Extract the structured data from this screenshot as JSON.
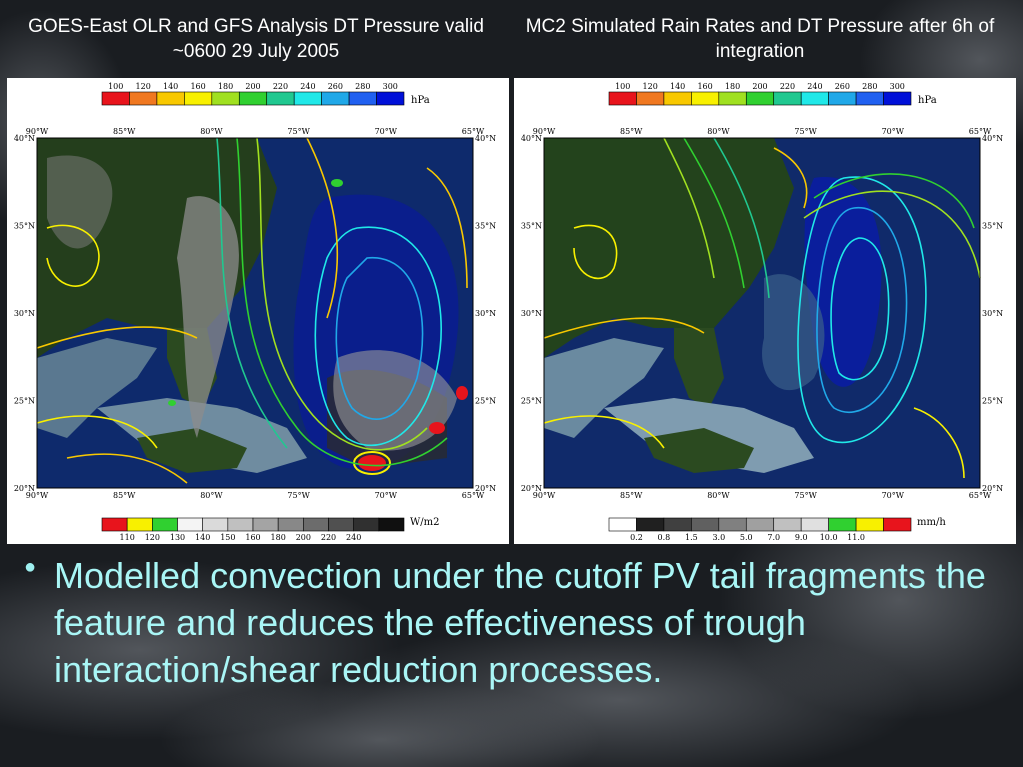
{
  "slide": {
    "bullet_symbol": "●",
    "bullet_text": "Modelled convection under the cutoff PV tail fragments the feature and reduces the effectiveness of trough interaction/shear reduction processes."
  },
  "panels": [
    {
      "title": "GOES-East OLR and GFS Analysis DT Pressure valid ~0600 29 July 2005",
      "top_scale": {
        "unit": "hPa",
        "labels": [
          "100",
          "120",
          "140",
          "160",
          "180",
          "200",
          "220",
          "240",
          "260",
          "280",
          "300"
        ],
        "colors": [
          "#e8141c",
          "#f07820",
          "#f8c800",
          "#f8f000",
          "#a0e020",
          "#30d030",
          "#20c890",
          "#20e8e8",
          "#20a8e8",
          "#2060f0",
          "#0010d8"
        ]
      },
      "bottom_scale": {
        "unit": "W/m2",
        "labels": [
          "110",
          "120",
          "130",
          "140",
          "150",
          "160",
          "180",
          "200",
          "220",
          "240"
        ],
        "colors": [
          "#e8141c",
          "#f8f000",
          "#30d030",
          "#f4f4f4",
          "#dadada",
          "#c0c0c0",
          "#a4a4a4",
          "#888888",
          "#6c6c6c",
          "#505050",
          "#303030",
          "#101010"
        ]
      },
      "lon_labels": [
        "90°W",
        "85°W",
        "80°W",
        "75°W",
        "70°W",
        "65°W"
      ],
      "lat_labels": [
        "40°N",
        "35°N",
        "30°N",
        "25°N",
        "20°N"
      ]
    },
    {
      "title": "MC2 Simulated Rain Rates and DT Pressure after 6h of integration",
      "top_scale": {
        "unit": "hPa",
        "labels": [
          "100",
          "120",
          "140",
          "160",
          "180",
          "200",
          "220",
          "240",
          "260",
          "280",
          "300"
        ],
        "colors": [
          "#e8141c",
          "#f07820",
          "#f8c800",
          "#f8f000",
          "#a0e020",
          "#30d030",
          "#20c890",
          "#20e8e8",
          "#20a8e8",
          "#2060f0",
          "#0010d8"
        ]
      },
      "bottom_scale": {
        "unit": "mm/h",
        "labels": [
          "0.2",
          "0.8",
          "1.5",
          "3.0",
          "5.0",
          "7.0",
          "9.0",
          "10.0",
          "11.0"
        ],
        "colors": [
          "#ffffff",
          "#202020",
          "#404040",
          "#606060",
          "#808080",
          "#a0a0a0",
          "#c0c0c0",
          "#e0e0e0",
          "#30d030",
          "#f8f000",
          "#e8141c"
        ]
      },
      "lon_labels": [
        "90°W",
        "85°W",
        "80°W",
        "75°W",
        "70°W",
        "65°W"
      ],
      "lat_labels": [
        "40°N",
        "35°N",
        "30°N",
        "25°N",
        "20°N"
      ]
    }
  ]
}
